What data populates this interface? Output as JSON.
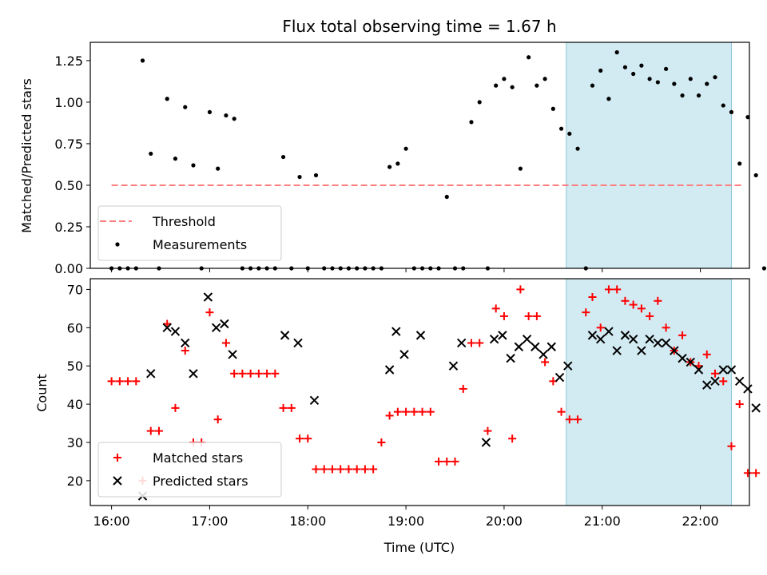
{
  "chart_data": [
    {
      "type": "scatter",
      "title": "Flux total observing time = 1.67 h",
      "xlabel": "",
      "ylabel": "Matched/Predicted stars",
      "xlim": [
        "15:47",
        "22:30"
      ],
      "ylim": [
        0,
        1.36
      ],
      "yticks": [
        0,
        0.25,
        0.5,
        0.75,
        1.0,
        1.25
      ],
      "ytick_labels": [
        "0.00",
        "0.25",
        "0.50",
        "0.75",
        "1.00",
        "1.25"
      ],
      "xticks": [
        "16:00",
        "17:00",
        "18:00",
        "19:00",
        "20:00",
        "21:00",
        "22:00"
      ],
      "shaded_interval": [
        "20:38",
        "22:19"
      ],
      "legend": {
        "position": "lower-left",
        "entries": [
          "Threshold",
          "Measurements"
        ]
      },
      "threshold": {
        "name": "Threshold",
        "value": 0.5,
        "x_range": [
          "16:00",
          "22:25"
        ],
        "color": "#ff7f7f"
      },
      "series": [
        {
          "name": "Measurements",
          "color": "#000000",
          "points": [
            [
              "16:00",
              0
            ],
            [
              "16:05",
              0
            ],
            [
              "16:10",
              0
            ],
            [
              "16:15",
              0
            ],
            [
              "16:19",
              1.25
            ],
            [
              "16:24",
              0.69
            ],
            [
              "16:29",
              0
            ],
            [
              "16:34",
              1.02
            ],
            [
              "16:39",
              0.66
            ],
            [
              "16:45",
              0.97
            ],
            [
              "16:50",
              0.62
            ],
            [
              "16:55",
              0
            ],
            [
              "17:00",
              0.94
            ],
            [
              "17:05",
              0.6
            ],
            [
              "17:10",
              0.92
            ],
            [
              "17:15",
              0.9
            ],
            [
              "17:20",
              0
            ],
            [
              "17:25",
              0
            ],
            [
              "17:30",
              0
            ],
            [
              "17:35",
              0
            ],
            [
              "17:40",
              0
            ],
            [
              "17:45",
              0.67
            ],
            [
              "17:50",
              0
            ],
            [
              "17:55",
              0.55
            ],
            [
              "18:00",
              0
            ],
            [
              "18:05",
              0.56
            ],
            [
              "18:10",
              0
            ],
            [
              "18:15",
              0
            ],
            [
              "18:20",
              0
            ],
            [
              "18:25",
              0
            ],
            [
              "18:30",
              0
            ],
            [
              "18:35",
              0
            ],
            [
              "18:40",
              0
            ],
            [
              "18:45",
              0
            ],
            [
              "18:50",
              0.61
            ],
            [
              "18:55",
              0.63
            ],
            [
              "19:00",
              0.72
            ],
            [
              "19:05",
              0
            ],
            [
              "19:10",
              0
            ],
            [
              "19:15",
              0
            ],
            [
              "19:20",
              0
            ],
            [
              "19:25",
              0.43
            ],
            [
              "19:30",
              0
            ],
            [
              "19:35",
              0
            ],
            [
              "19:40",
              0.88
            ],
            [
              "19:45",
              1.0
            ],
            [
              "19:50",
              0
            ],
            [
              "19:55",
              1.1
            ],
            [
              "20:00",
              1.14
            ],
            [
              "20:05",
              1.09
            ],
            [
              "20:10",
              0.6
            ],
            [
              "20:15",
              1.27
            ],
            [
              "20:20",
              1.1
            ],
            [
              "20:25",
              1.14
            ],
            [
              "20:30",
              0.96
            ],
            [
              "20:35",
              0.84
            ],
            [
              "20:40",
              0.81
            ],
            [
              "20:45",
              0.72
            ],
            [
              "20:50",
              0
            ],
            [
              "20:54",
              1.1
            ],
            [
              "20:59",
              1.19
            ],
            [
              "21:04",
              1.02
            ],
            [
              "21:09",
              1.3
            ],
            [
              "21:14",
              1.21
            ],
            [
              "21:19",
              1.17
            ],
            [
              "21:24",
              1.22
            ],
            [
              "21:29",
              1.14
            ],
            [
              "21:34",
              1.12
            ],
            [
              "21:39",
              1.2
            ],
            [
              "21:44",
              1.11
            ],
            [
              "21:49",
              1.04
            ],
            [
              "21:54",
              1.14
            ],
            [
              "21:59",
              1.04
            ],
            [
              "22:04",
              1.11
            ],
            [
              "22:09",
              1.15
            ],
            [
              "22:14",
              0.98
            ],
            [
              "22:19",
              0.94
            ],
            [
              "22:24",
              0.63
            ],
            [
              "22:29",
              0.91
            ],
            [
              "22:34",
              0.56
            ],
            [
              "22:39",
              0
            ]
          ]
        }
      ]
    },
    {
      "type": "scatter",
      "xlabel": "Time (UTC)",
      "ylabel": "Count",
      "xlim": [
        "15:47",
        "22:30"
      ],
      "ylim": [
        13.5,
        72.8
      ],
      "yticks": [
        20,
        30,
        40,
        50,
        60,
        70
      ],
      "xticks": [
        "16:00",
        "17:00",
        "18:00",
        "19:00",
        "20:00",
        "21:00",
        "22:00"
      ],
      "shaded_interval": [
        "20:38",
        "22:19"
      ],
      "legend": {
        "position": "lower-left",
        "entries": [
          "Matched stars",
          "Predicted stars"
        ]
      },
      "series": [
        {
          "name": "Matched stars",
          "marker": "+",
          "color": "#ff0000",
          "points": [
            [
              "16:00",
              46
            ],
            [
              "16:05",
              46
            ],
            [
              "16:10",
              46
            ],
            [
              "16:15",
              46
            ],
            [
              "16:19",
              20
            ],
            [
              "16:24",
              33
            ],
            [
              "16:29",
              33
            ],
            [
              "16:34",
              61
            ],
            [
              "16:39",
              39
            ],
            [
              "16:45",
              54
            ],
            [
              "16:50",
              30
            ],
            [
              "16:55",
              30
            ],
            [
              "17:00",
              64
            ],
            [
              "17:05",
              36
            ],
            [
              "17:10",
              56
            ],
            [
              "17:15",
              48
            ],
            [
              "17:20",
              48
            ],
            [
              "17:25",
              48
            ],
            [
              "17:30",
              48
            ],
            [
              "17:35",
              48
            ],
            [
              "17:40",
              48
            ],
            [
              "17:45",
              39
            ],
            [
              "17:50",
              39
            ],
            [
              "17:55",
              31
            ],
            [
              "18:00",
              31
            ],
            [
              "18:05",
              23
            ],
            [
              "18:10",
              23
            ],
            [
              "18:15",
              23
            ],
            [
              "18:20",
              23
            ],
            [
              "18:25",
              23
            ],
            [
              "18:30",
              23
            ],
            [
              "18:35",
              23
            ],
            [
              "18:40",
              23
            ],
            [
              "18:45",
              30
            ],
            [
              "18:50",
              37
            ],
            [
              "18:55",
              38
            ],
            [
              "19:00",
              38
            ],
            [
              "19:05",
              38
            ],
            [
              "19:10",
              38
            ],
            [
              "19:15",
              38
            ],
            [
              "19:20",
              25
            ],
            [
              "19:25",
              25
            ],
            [
              "19:30",
              25
            ],
            [
              "19:35",
              44
            ],
            [
              "19:40",
              56
            ],
            [
              "19:45",
              56
            ],
            [
              "19:50",
              33
            ],
            [
              "19:55",
              65
            ],
            [
              "20:00",
              63
            ],
            [
              "20:05",
              31
            ],
            [
              "20:10",
              70
            ],
            [
              "20:15",
              63
            ],
            [
              "20:20",
              63
            ],
            [
              "20:25",
              51
            ],
            [
              "20:30",
              46
            ],
            [
              "20:35",
              38
            ],
            [
              "20:40",
              36
            ],
            [
              "20:45",
              36
            ],
            [
              "20:50",
              64
            ],
            [
              "20:54",
              68
            ],
            [
              "20:59",
              60
            ],
            [
              "21:04",
              70
            ],
            [
              "21:09",
              70
            ],
            [
              "21:14",
              67
            ],
            [
              "21:19",
              66
            ],
            [
              "21:24",
              65
            ],
            [
              "21:29",
              63
            ],
            [
              "21:34",
              67
            ],
            [
              "21:39",
              60
            ],
            [
              "21:44",
              54
            ],
            [
              "21:49",
              58
            ],
            [
              "21:54",
              51
            ],
            [
              "21:59",
              50
            ],
            [
              "22:04",
              53
            ],
            [
              "22:09",
              48
            ],
            [
              "22:14",
              46
            ],
            [
              "22:19",
              29
            ],
            [
              "22:24",
              40
            ],
            [
              "22:29",
              22
            ],
            [
              "22:34",
              22
            ]
          ]
        },
        {
          "name": "Predicted stars",
          "marker": "x",
          "color": "#000000",
          "points": [
            [
              "16:19",
              16
            ],
            [
              "16:24",
              48
            ],
            [
              "16:34",
              60
            ],
            [
              "16:39",
              59
            ],
            [
              "16:45",
              56
            ],
            [
              "16:50",
              48
            ],
            [
              "16:59",
              68
            ],
            [
              "17:04",
              60
            ],
            [
              "17:09",
              61
            ],
            [
              "17:14",
              53
            ],
            [
              "17:46",
              58
            ],
            [
              "17:54",
              56
            ],
            [
              "18:04",
              41
            ],
            [
              "18:50",
              49
            ],
            [
              "18:54",
              59
            ],
            [
              "18:59",
              53
            ],
            [
              "19:09",
              58
            ],
            [
              "19:29",
              50
            ],
            [
              "19:34",
              56
            ],
            [
              "19:49",
              30
            ],
            [
              "19:54",
              57
            ],
            [
              "19:59",
              58
            ],
            [
              "20:04",
              52
            ],
            [
              "20:09",
              55
            ],
            [
              "20:14",
              57
            ],
            [
              "20:19",
              55
            ],
            [
              "20:24",
              53
            ],
            [
              "20:29",
              55
            ],
            [
              "20:34",
              47
            ],
            [
              "20:39",
              50
            ],
            [
              "20:54",
              58
            ],
            [
              "20:59",
              57
            ],
            [
              "21:04",
              59
            ],
            [
              "21:09",
              54
            ],
            [
              "21:14",
              58
            ],
            [
              "21:19",
              57
            ],
            [
              "21:24",
              54
            ],
            [
              "21:29",
              57
            ],
            [
              "21:34",
              56
            ],
            [
              "21:39",
              56
            ],
            [
              "21:44",
              54
            ],
            [
              "21:49",
              52
            ],
            [
              "21:54",
              51
            ],
            [
              "21:59",
              49
            ],
            [
              "22:04",
              45
            ],
            [
              "22:09",
              46
            ],
            [
              "22:14",
              49
            ],
            [
              "22:19",
              49
            ],
            [
              "22:24",
              46
            ],
            [
              "22:29",
              44
            ],
            [
              "22:34",
              39
            ]
          ]
        }
      ]
    }
  ]
}
